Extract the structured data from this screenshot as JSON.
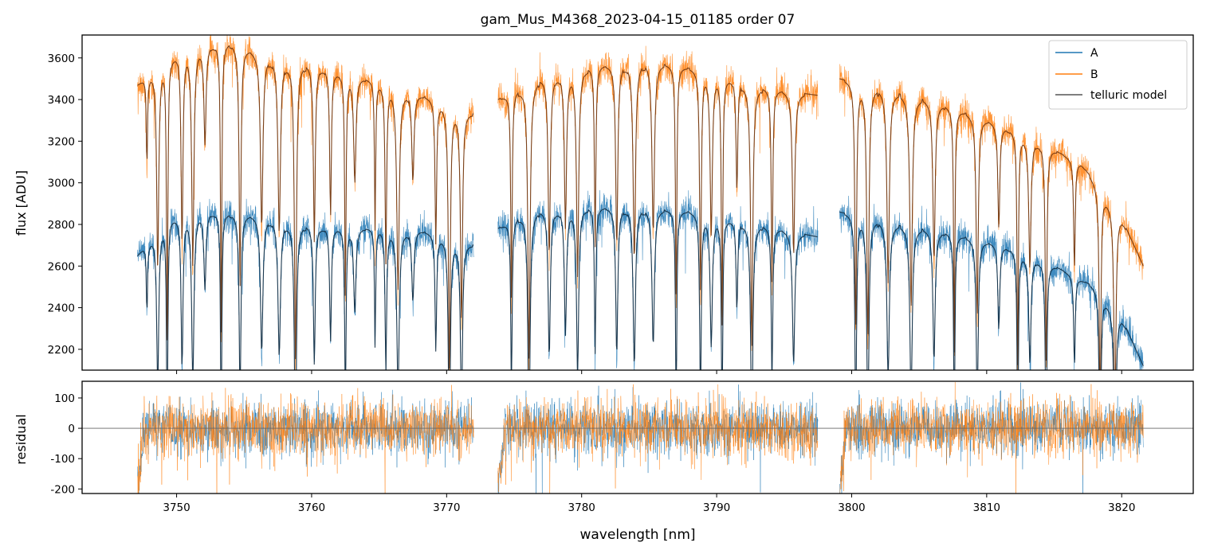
{
  "colors": {
    "A": "#1f77b4",
    "B": "#ff7f0e",
    "model": "#555555",
    "model_on_A": "#102a3f",
    "model_on_B": "#6b3410",
    "zero_line": "#666666",
    "axes": "#000000"
  },
  "chart_data": [
    {
      "type": "line",
      "title": "gam_Mus_M4368_2023-04-15_01185  order 07",
      "xlabel": "",
      "ylabel": "flux [ADU]",
      "xlim": [
        3743.0,
        3825.3
      ],
      "ylim": [
        2100,
        3710
      ],
      "yticks": [
        2200,
        2400,
        2600,
        2800,
        3000,
        3200,
        3400,
        3600
      ],
      "xticks": [
        3750,
        3760,
        3770,
        3780,
        3790,
        3800,
        3810,
        3820
      ],
      "legend": {
        "placement": "top-right",
        "entries": [
          "A",
          "B",
          "telluric model"
        ]
      },
      "segments": [
        [
          3747.1,
          3772.0
        ],
        [
          3773.8,
          3797.5
        ],
        [
          3799.1,
          3821.6
        ]
      ],
      "series": [
        {
          "name": "B",
          "continuum": [
            [
              3747.1,
              3470
            ],
            [
              3750.5,
              3650
            ],
            [
              3754,
              3670
            ],
            [
              3757,
              3600
            ],
            [
              3761,
              3550
            ],
            [
              3765,
              3480
            ],
            [
              3769,
              3400
            ],
            [
              3772,
              3330
            ],
            [
              3773.8,
              3400
            ],
            [
              3777,
              3500
            ],
            [
              3781,
              3560
            ],
            [
              3785,
              3580
            ],
            [
              3789,
              3540
            ],
            [
              3793,
              3460
            ],
            [
              3797.5,
              3420
            ],
            [
              3799.1,
              3500
            ],
            [
              3802,
              3450
            ],
            [
              3806,
              3390
            ],
            [
              3810,
              3300
            ],
            [
              3814,
              3190
            ],
            [
              3817,
              3090
            ],
            [
              3820,
              2830
            ],
            [
              3821.6,
              2600
            ]
          ]
        },
        {
          "name": "A",
          "continuum": [
            [
              3747.1,
              2650
            ],
            [
              3749.5,
              2830
            ],
            [
              3752,
              2860
            ],
            [
              3756,
              2840
            ],
            [
              3760,
              2790
            ],
            [
              3764,
              2780
            ],
            [
              3768,
              2770
            ],
            [
              3772,
              2700
            ],
            [
              3773.8,
              2780
            ],
            [
              3776,
              2860
            ],
            [
              3780,
              2880
            ],
            [
              3784,
              2880
            ],
            [
              3788,
              2860
            ],
            [
              3792,
              2810
            ],
            [
              3797.5,
              2740
            ],
            [
              3799.1,
              2860
            ],
            [
              3803,
              2800
            ],
            [
              3807,
              2760
            ],
            [
              3811,
              2700
            ],
            [
              3815,
              2600
            ],
            [
              3818,
              2500
            ],
            [
              3820,
              2350
            ],
            [
              3821.6,
              2120
            ]
          ]
        },
        {
          "name": "telluric model",
          "line_centers": [
            3747.8,
            3748.6,
            3749.3,
            3750.4,
            3751.2,
            3752.1,
            3753.3,
            3754.7,
            3756.3,
            3757.6,
            3758.8,
            3760.2,
            3761.4,
            3762.5,
            3763.2,
            3764.7,
            3765.5,
            3766.4,
            3767.5,
            3769.2,
            3770.2,
            3771.1,
            3774.8,
            3776.1,
            3777.6,
            3778.8,
            3779.7,
            3781.0,
            3782.6,
            3783.9,
            3785.3,
            3787.0,
            3788.8,
            3789.6,
            3790.4,
            3791.5,
            3792.6,
            3794.1,
            3795.7,
            3800.3,
            3801.2,
            3802.7,
            3804.4,
            3806.1,
            3807.6,
            3809.3,
            3810.9,
            3812.3,
            3813.2,
            3814.4,
            3816.5,
            3818.4,
            3819.5
          ]
        }
      ]
    },
    {
      "type": "line",
      "title": "",
      "xlabel": "wavelength [nm]",
      "ylabel": "residual",
      "xlim": [
        3743.0,
        3825.3
      ],
      "ylim": [
        -215,
        155
      ],
      "yticks": [
        -200,
        -100,
        0,
        100
      ],
      "xticks": [
        3750,
        3760,
        3770,
        3780,
        3790,
        3800,
        3810,
        3820
      ],
      "xticklabels": [
        "3750",
        "3760",
        "3770",
        "3780",
        "3790",
        "3800",
        "3810",
        "3820"
      ],
      "series": [
        {
          "name": "A",
          "typical_amplitude": 80
        },
        {
          "name": "B",
          "typical_amplitude": 85
        }
      ],
      "reference_line": 0
    }
  ]
}
